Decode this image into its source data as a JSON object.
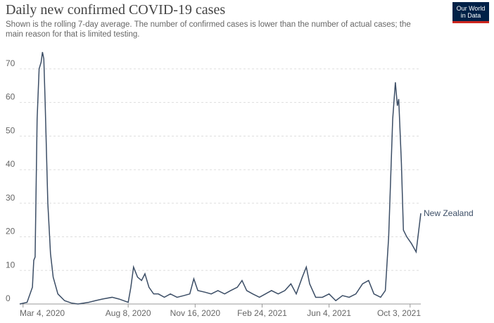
{
  "chart_data": {
    "type": "line",
    "title": "Daily new confirmed COVID-19 cases",
    "subtitle": [
      "Shown is the rolling 7-day average. The number of confirmed cases is lower than the number of actual cases; the",
      "main reason for that is limited testing."
    ],
    "x": [
      "2020-02-28",
      "2020-03-10",
      "2020-03-18",
      "2020-03-20",
      "2020-03-22",
      "2020-03-25",
      "2020-03-28",
      "2020-03-31",
      "2020-04-02",
      "2020-04-04",
      "2020-04-06",
      "2020-04-10",
      "2020-04-14",
      "2020-04-18",
      "2020-04-25",
      "2020-05-05",
      "2020-05-15",
      "2020-05-25",
      "2020-06-10",
      "2020-06-20",
      "2020-07-01",
      "2020-07-15",
      "2020-07-25",
      "2020-08-01",
      "2020-08-08",
      "2020-08-12",
      "2020-08-16",
      "2020-08-22",
      "2020-08-28",
      "2020-09-02",
      "2020-09-08",
      "2020-09-15",
      "2020-09-22",
      "2020-10-01",
      "2020-10-10",
      "2020-10-20",
      "2020-10-30",
      "2020-11-08",
      "2020-11-14",
      "2020-11-20",
      "2020-12-01",
      "2020-12-10",
      "2020-12-20",
      "2020-12-30",
      "2021-01-08",
      "2021-01-18",
      "2021-01-25",
      "2021-02-01",
      "2021-02-10",
      "2021-02-20",
      "2021-03-01",
      "2021-03-10",
      "2021-03-20",
      "2021-03-30",
      "2021-04-08",
      "2021-04-16",
      "2021-04-25",
      "2021-05-01",
      "2021-05-06",
      "2021-05-15",
      "2021-05-25",
      "2021-06-04",
      "2021-06-14",
      "2021-06-24",
      "2021-07-04",
      "2021-07-14",
      "2021-07-24",
      "2021-08-02",
      "2021-08-10",
      "2021-08-20",
      "2021-08-27",
      "2021-09-01",
      "2021-09-07",
      "2021-09-11",
      "2021-09-14",
      "2021-09-16",
      "2021-09-20",
      "2021-09-23",
      "2021-09-28",
      "2021-10-05",
      "2021-10-12",
      "2021-10-19"
    ],
    "series": [
      {
        "name": "New Zealand",
        "color": "#3c4e66",
        "values": [
          0,
          0.5,
          5,
          13,
          14,
          55,
          70,
          72,
          75,
          73,
          60,
          30,
          15,
          8,
          3,
          1,
          0.3,
          0,
          0.5,
          1,
          1.5,
          2,
          1.5,
          1,
          0.5,
          5,
          11,
          8,
          7,
          9,
          5,
          3,
          3,
          2,
          3,
          2,
          2.5,
          3,
          7.5,
          4,
          3.5,
          3,
          4,
          3,
          4,
          5,
          7,
          4,
          3,
          2,
          3,
          4,
          3,
          4,
          6,
          3,
          8,
          11,
          6,
          2,
          2,
          3,
          1,
          2.5,
          2,
          3,
          6,
          7,
          3,
          2,
          4,
          20,
          55,
          66,
          59,
          61,
          42,
          22,
          20,
          18,
          15.5,
          27
        ]
      }
    ],
    "xlim": [
      "2020-02-28",
      "2021-10-19"
    ],
    "xticks": [
      {
        "value": "2020-03-04",
        "label": "Mar 4, 2020"
      },
      {
        "value": "2020-08-08",
        "label": "Aug 8, 2020"
      },
      {
        "value": "2020-11-16",
        "label": "Nov 16, 2020"
      },
      {
        "value": "2021-02-24",
        "label": "Feb 24, 2021"
      },
      {
        "value": "2021-06-04",
        "label": "Jun 4, 2021"
      },
      {
        "value": "2021-10-03",
        "label": "Oct 3, 2021"
      }
    ],
    "ylim": [
      0,
      75
    ],
    "yticks": [
      0,
      10,
      20,
      30,
      40,
      50,
      60,
      70
    ],
    "grid": true
  },
  "logo": [
    "Our World",
    "in Data"
  ]
}
